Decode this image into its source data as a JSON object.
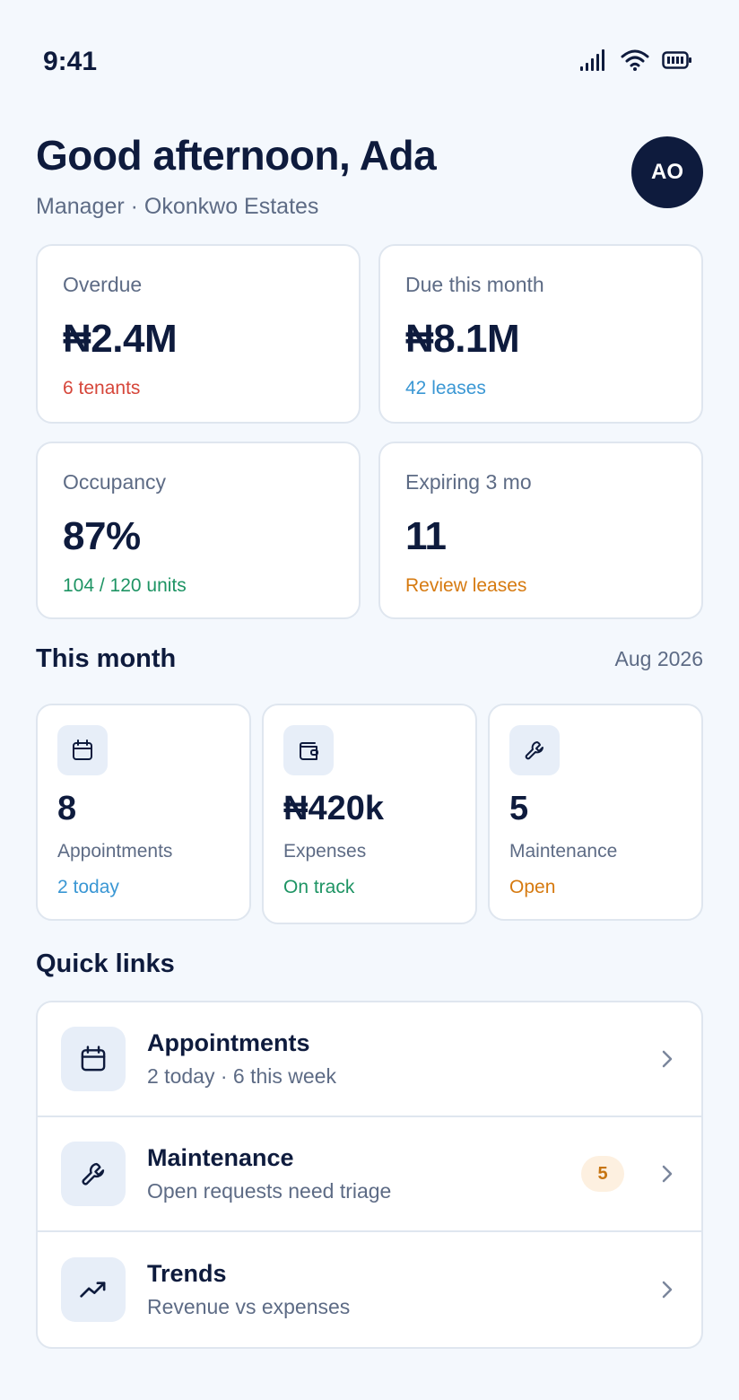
{
  "status_bar": {
    "time": "9:41"
  },
  "header": {
    "greeting": "Good afternoon, Ada",
    "subtitle": "Manager · Okonkwo Estates",
    "avatar_initials": "AO"
  },
  "kpis": [
    {
      "label": "Overdue",
      "value": "₦2.4M",
      "sub": "6 tenants",
      "sub_color": "#d6463a"
    },
    {
      "label": "Due this month",
      "value": "₦8.1M",
      "sub": "42 leases",
      "sub_color": "#3a97d4"
    },
    {
      "label": "Occupancy",
      "value": "87%",
      "sub": "104 / 120 units",
      "sub_color": "#1e9464"
    },
    {
      "label": "Expiring 3 mo",
      "value": "11",
      "sub": "Review leases",
      "sub_color": "#d67a10"
    }
  ],
  "this_month": {
    "title": "This month",
    "period": "Aug 2026",
    "cards": [
      {
        "icon": "calendar-icon",
        "value": "8",
        "label": "Appointments",
        "sub": "2 today"
      },
      {
        "icon": "wallet-icon",
        "value": "₦420k",
        "label": "Expenses",
        "sub": "On track"
      },
      {
        "icon": "wrench-icon",
        "value": "5",
        "label": "Maintenance",
        "sub": "Open"
      }
    ]
  },
  "quick_links": {
    "title": "Quick links",
    "items": [
      {
        "icon": "calendar-icon",
        "title": "Appointments",
        "sub": "2 today · 6 this week"
      },
      {
        "icon": "wrench-icon",
        "title": "Maintenance",
        "sub": "Open requests need triage",
        "badge": "5"
      },
      {
        "icon": "trend-up-icon",
        "title": "Trends",
        "sub": "Revenue vs expenses"
      }
    ]
  },
  "colors": {
    "background": "#f4f8fd",
    "primary": "#0e1b3d",
    "red": "#d6463a",
    "blue": "#3a97d4",
    "green": "#1e9464",
    "orange": "#d67a10"
  }
}
